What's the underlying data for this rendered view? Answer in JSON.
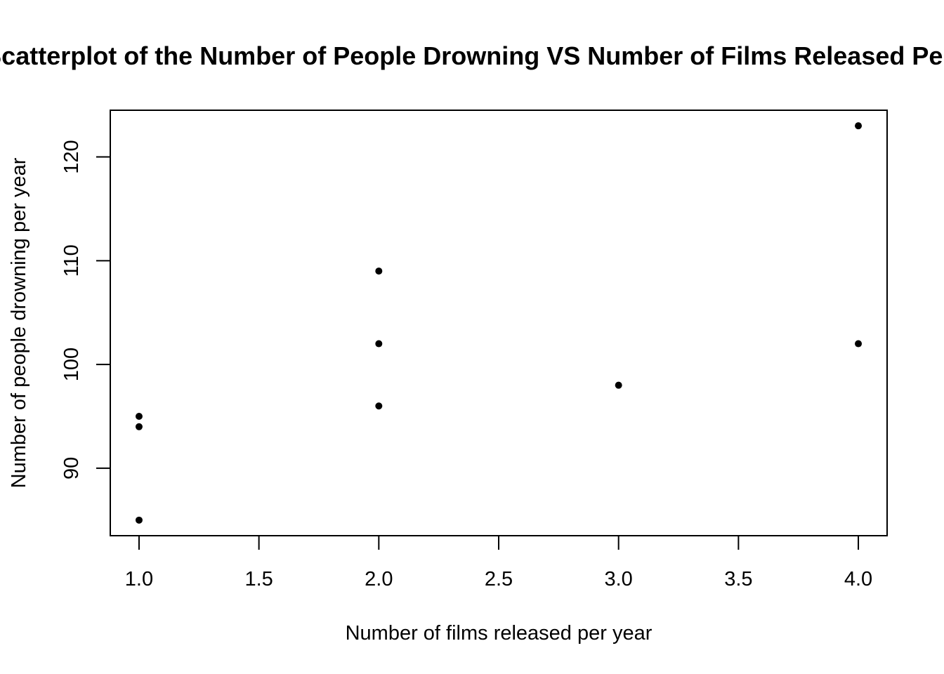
{
  "chart_data": {
    "type": "scatter",
    "title": "Scatterplot of the Number of People Drowning VS Number of Films Released Per Year",
    "xlabel": "Number of films released per year",
    "ylabel": "Number of people drowning per year",
    "xlim": [
      0.88,
      4.12
    ],
    "ylim": [
      83.5,
      124.5
    ],
    "x_ticks": [
      1.0,
      1.5,
      2.0,
      2.5,
      3.0,
      3.5,
      4.0
    ],
    "x_tick_labels": [
      "1.0",
      "1.5",
      "2.0",
      "2.5",
      "3.0",
      "3.5",
      "4.0"
    ],
    "y_ticks": [
      90,
      100,
      110,
      120
    ],
    "y_tick_labels": [
      "90",
      "100",
      "110",
      "120"
    ],
    "grid": false,
    "marker_color": "#000000",
    "points": [
      {
        "x": 1,
        "y": 85
      },
      {
        "x": 1,
        "y": 94
      },
      {
        "x": 1,
        "y": 95
      },
      {
        "x": 2,
        "y": 96
      },
      {
        "x": 2,
        "y": 102
      },
      {
        "x": 2,
        "y": 109
      },
      {
        "x": 3,
        "y": 98
      },
      {
        "x": 4,
        "y": 102
      },
      {
        "x": 4,
        "y": 123
      }
    ]
  }
}
